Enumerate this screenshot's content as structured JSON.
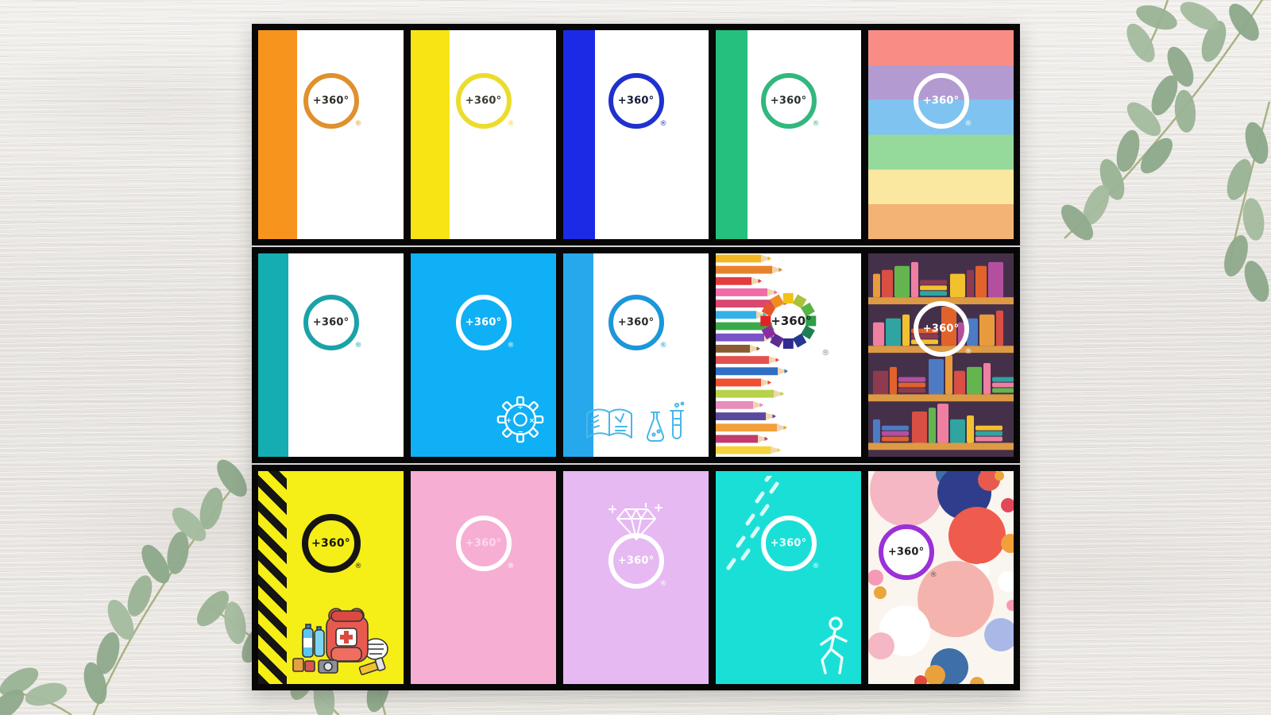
{
  "brand": {
    "logo_text": "+360°",
    "registered_mark": "®"
  },
  "board": {
    "rows": 3,
    "cols": 5,
    "frame_color": "#070707",
    "separator_color": "#d6d5d6"
  },
  "background": {
    "wood_base": "#ebe8e4",
    "leaf_color": "#92aa8f"
  },
  "covers": [
    {
      "name": "orange-spine",
      "style": {
        "bg": "#ffffff",
        "stripe": "#f7941e",
        "stripew": "27%",
        "ring": "#e0902e",
        "ltext": "#2e2a26",
        "reg": "#e0902e"
      }
    },
    {
      "name": "yellow-spine",
      "style": {
        "bg": "#ffffff",
        "stripe": "#f8e414",
        "stripew": "27%",
        "ring": "#ecdc2e",
        "ltext": "#3c3a30",
        "reg": "#ecdc2e"
      }
    },
    {
      "name": "blue-spine",
      "style": {
        "bg": "#ffffff",
        "stripe": "#1b2ae4",
        "stripew": "22%",
        "ring": "#1f31cf",
        "ltext": "#131939",
        "reg": "#1f31cf"
      }
    },
    {
      "name": "green-spine",
      "style": {
        "bg": "#ffffff",
        "stripe": "#25c07d",
        "stripew": "22%",
        "ring": "#32b77e",
        "ltext": "#26312c",
        "reg": "#32b77e"
      }
    },
    {
      "name": "rainbow-stripes",
      "style": {
        "ring": "#ffffff",
        "ltext": "#ffffff",
        "reg": "#ffffff"
      },
      "stripes": [
        "#f98d85",
        "#b39bd1",
        "#7fc4f0",
        "#95d99b",
        "#fae8a0",
        "#f3b375"
      ]
    },
    {
      "name": "teal-spine",
      "style": {
        "bg": "#ffffff",
        "stripe": "#14aeb2",
        "stripew": "21%",
        "ring": "#1aa2a8",
        "ltext": "#2b2b2b",
        "reg": "#1aa2a8"
      }
    },
    {
      "name": "math-sky-blue",
      "style": {
        "bg": "#0fb0f5",
        "ring": "#ffffff",
        "ltext": "#ffffff",
        "reg": "#ffffff"
      }
    },
    {
      "name": "school-subjects",
      "style": {
        "bg": "#ffffff",
        "stripe": "#27a8ec",
        "stripew": "21%",
        "ring": "#1b97da",
        "ltext": "#2b2b2b",
        "reg": "#1b97da"
      }
    },
    {
      "name": "colored-pencils",
      "style": {
        "bg": "#ffffff"
      },
      "wheel_colors": [
        "#f2c21c",
        "#a9c23b",
        "#58b347",
        "#2f9e49",
        "#1d7f52",
        "#24388f",
        "#312a91",
        "#5c2d91",
        "#8e2b9e",
        "#e02225",
        "#e8542a",
        "#ef8c1f"
      ],
      "pencil_colors": [
        "#f2b722",
        "#e8822a",
        "#e23c3c",
        "#f06ba8",
        "#d9486e",
        "#35b1e8",
        "#3aa94c",
        "#7a52c7",
        "#8a5a32",
        "#e25050",
        "#2f6fc4",
        "#ef4f2e",
        "#b8d24a",
        "#e98dbb",
        "#5a4a9e",
        "#f2a03c",
        "#c23a6e",
        "#f4d43a"
      ]
    },
    {
      "name": "bookshelf",
      "style": {
        "ring": "#ffffff",
        "ltext": "#ffffff",
        "reg": "#ffffff",
        "ly": "37%"
      },
      "book_palette": [
        "#e89b3c",
        "#d94f43",
        "#64b54e",
        "#ef7fa0",
        "#2fa4a0",
        "#f2c12e",
        "#8e3b50",
        "#e2622b",
        "#b44fa0",
        "#4d7bc4"
      ],
      "shelf_bg": "#45304a",
      "shelf_board": "#dd9a44"
    },
    {
      "name": "emergency-yellow",
      "style": {
        "bg": "#f5ee17",
        "ring": "#141414",
        "ltext": "#141414",
        "reg": "#141414",
        "ringw": "8px",
        "lsize": "14px"
      }
    },
    {
      "name": "plain-pink",
      "style": {
        "bg": "#f7aed3",
        "ring": "#ffffff",
        "ltext": "#fad9ec",
        "reg": "#ffffff"
      }
    },
    {
      "name": "diamond-lavender",
      "style": {
        "bg": "#e6b9f3",
        "ring": "#ffffff",
        "ltext": "#ffffff",
        "reg": "#ffffff",
        "ly": "42%"
      }
    },
    {
      "name": "walk-turquoise",
      "style": {
        "bg": "#1adfd7",
        "ring": "#ffffff",
        "ltext": "#f0fffd",
        "reg": "#ffffff"
      }
    },
    {
      "name": "color-bubbles",
      "style": {
        "bg": "#faf5ef",
        "ring": "#9b30d9",
        "ltext": "#1d1d1d",
        "reg": "#555555",
        "lx": "26%",
        "ly": "38%"
      },
      "circles": [
        [
          26,
          9,
          46,
          "#f5b7c4"
        ],
        [
          55,
          1,
          16,
          "#3f6fa8"
        ],
        [
          66,
          10,
          34,
          "#2e3e8c"
        ],
        [
          83,
          4,
          14,
          "#e85a4f"
        ],
        [
          96,
          16,
          9,
          "#e3475a"
        ],
        [
          90,
          2,
          6,
          "#eaa53d"
        ],
        [
          75,
          30,
          36,
          "#ef5b4d"
        ],
        [
          98,
          34,
          12,
          "#f0a13c"
        ],
        [
          26,
          37,
          32,
          "#ffffff"
        ],
        [
          78,
          47,
          10,
          "#ffffff"
        ],
        [
          96,
          52,
          13,
          "#ffffff"
        ],
        [
          60,
          60,
          48,
          "#f4b4ad"
        ],
        [
          8,
          57,
          8,
          "#eaa53d"
        ],
        [
          5,
          50,
          10,
          "#f59ab5"
        ],
        [
          99,
          63,
          7,
          "#f59ab5"
        ],
        [
          25,
          75,
          32,
          "#ffffff"
        ],
        [
          9,
          82,
          17,
          "#f5b7c4"
        ],
        [
          91,
          77,
          21,
          "#aab8e8"
        ],
        [
          56,
          92,
          24,
          "#3f6fa8"
        ],
        [
          46,
          96,
          13,
          "#e9a23b"
        ],
        [
          36,
          99,
          8,
          "#e34a3e"
        ],
        [
          75,
          100,
          9,
          "#eaa53d"
        ]
      ]
    }
  ]
}
